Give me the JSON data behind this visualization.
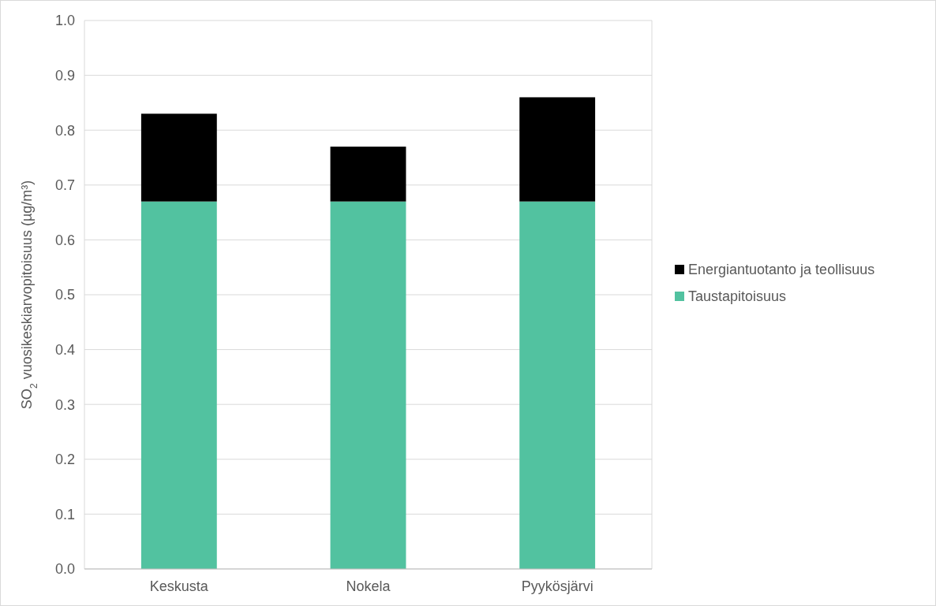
{
  "chart_data": {
    "type": "bar",
    "stacked": true,
    "ylabel": "SO$_{2}$ vuosikeskiarvopitoisuus (µg/m³)",
    "categories": [
      "Keskusta",
      "Nokela",
      "Pyykösjärvi"
    ],
    "series": [
      {
        "name": "Taustapitoisuus",
        "color": "#52c2a0",
        "values": [
          0.67,
          0.67,
          0.67
        ]
      },
      {
        "name": "Energiantuotanto ja teollisuus",
        "color": "#000000",
        "values": [
          0.16,
          0.1,
          0.19
        ]
      }
    ],
    "ylim": [
      0,
      1
    ],
    "yticks": [
      {
        "value": 0,
        "label": "0.0"
      },
      {
        "value": 0.1,
        "label": "0.1"
      },
      {
        "value": 0.2,
        "label": "0.2"
      },
      {
        "value": 0.3,
        "label": "0.3"
      },
      {
        "value": 0.4,
        "label": "0.4"
      },
      {
        "value": 0.5,
        "label": "0.5"
      },
      {
        "value": 0.6,
        "label": "0.6"
      },
      {
        "value": 0.7,
        "label": "0.7"
      },
      {
        "value": 0.8,
        "label": "0.8"
      },
      {
        "value": 0.9,
        "label": "0.9"
      },
      {
        "value": 1,
        "label": "1.0"
      }
    ],
    "grid": "y",
    "legend": "right"
  }
}
